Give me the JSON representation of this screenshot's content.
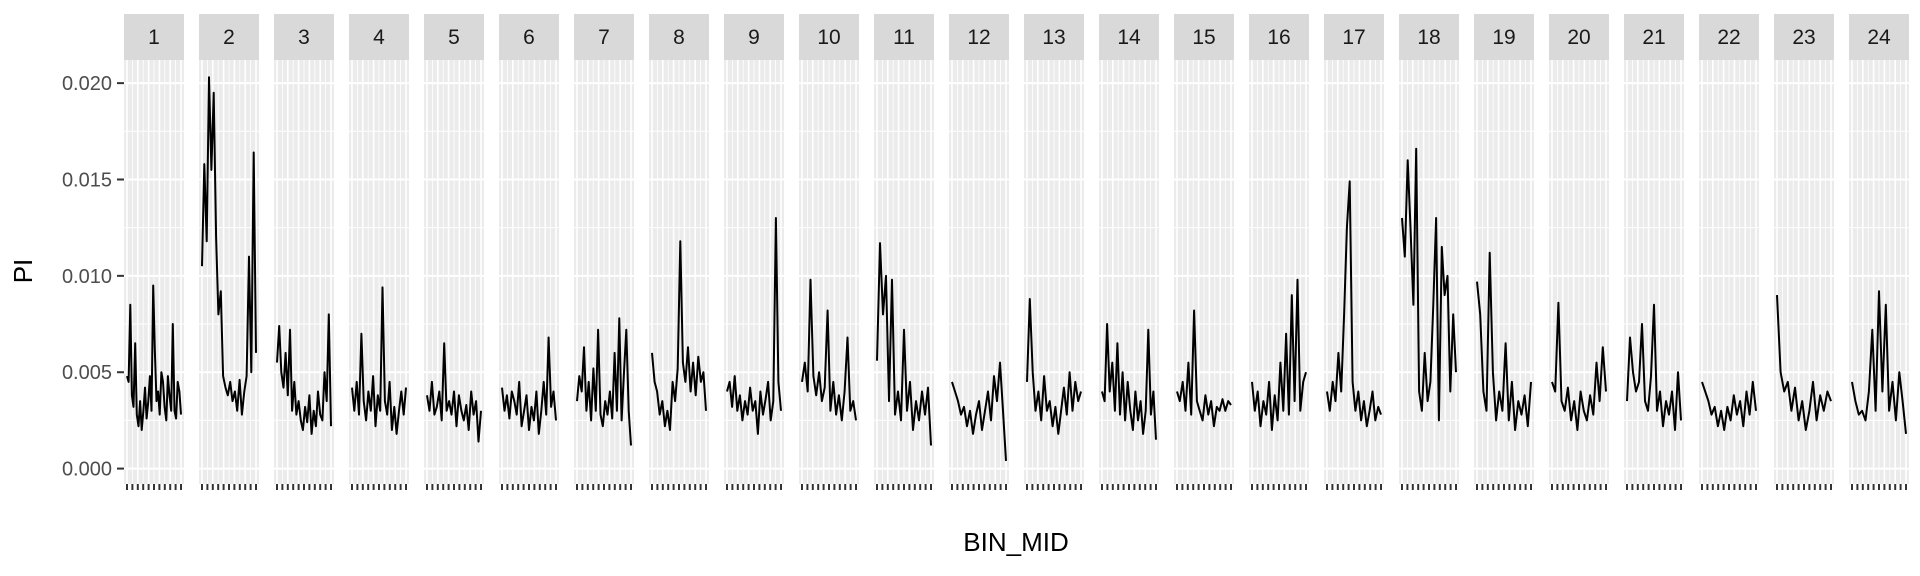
{
  "chart_data": {
    "type": "line",
    "xlabel": "BIN_MID",
    "ylabel": "PI",
    "ylim": [
      -0.0008,
      0.0212
    ],
    "yticks": [
      0.0,
      0.005,
      0.01,
      0.015,
      0.02
    ],
    "ytick_labels": [
      "0.000",
      "0.005",
      "0.010",
      "0.015",
      "0.020"
    ],
    "grid": true,
    "facet_strip_color": "#d9d9d9",
    "panel_background": "#ebebeb",
    "line_color": "#000000",
    "facets": [
      {
        "label": "1",
        "values": [
          0.0048,
          0.0045,
          0.0085,
          0.0038,
          0.0032,
          0.0065,
          0.0028,
          0.0022,
          0.0035,
          0.002,
          0.003,
          0.0042,
          0.0026,
          0.0035,
          0.0048,
          0.003,
          0.0095,
          0.0062,
          0.0035,
          0.004,
          0.0028,
          0.005,
          0.0045,
          0.0032,
          0.0025,
          0.0048,
          0.0038,
          0.003,
          0.0075,
          0.003,
          0.0026,
          0.0045,
          0.004,
          0.0028
        ]
      },
      {
        "label": "2",
        "values": [
          0.0105,
          0.0158,
          0.0118,
          0.0203,
          0.0155,
          0.0195,
          0.012,
          0.008,
          0.0092,
          0.0048,
          0.0042,
          0.0038,
          0.0045,
          0.0035,
          0.004,
          0.003,
          0.0046,
          0.0028,
          0.004,
          0.0048,
          0.011,
          0.005,
          0.0164,
          0.006
        ]
      },
      {
        "label": "3",
        "values": [
          0.0055,
          0.0074,
          0.005,
          0.0042,
          0.006,
          0.0038,
          0.0072,
          0.003,
          0.0045,
          0.0028,
          0.0035,
          0.0025,
          0.002,
          0.0032,
          0.0024,
          0.0038,
          0.0018,
          0.003,
          0.0022,
          0.004,
          0.0028,
          0.0025,
          0.005,
          0.0035,
          0.008,
          0.0022
        ]
      },
      {
        "label": "4",
        "values": [
          0.0042,
          0.003,
          0.0045,
          0.0028,
          0.007,
          0.0035,
          0.0025,
          0.004,
          0.003,
          0.0048,
          0.0022,
          0.0038,
          0.003,
          0.0094,
          0.0035,
          0.0028,
          0.0045,
          0.002,
          0.0032,
          0.0018,
          0.003,
          0.004,
          0.0028,
          0.0042
        ]
      },
      {
        "label": "5",
        "values": [
          0.0038,
          0.003,
          0.0045,
          0.0028,
          0.0032,
          0.004,
          0.0025,
          0.0065,
          0.003,
          0.0035,
          0.0028,
          0.004,
          0.0022,
          0.0038,
          0.003,
          0.0025,
          0.0033,
          0.002,
          0.004,
          0.0028,
          0.0035,
          0.0014,
          0.003
        ]
      },
      {
        "label": "6",
        "values": [
          0.0042,
          0.003,
          0.0038,
          0.0026,
          0.004,
          0.0035,
          0.0028,
          0.0045,
          0.0022,
          0.003,
          0.0038,
          0.002,
          0.0032,
          0.0025,
          0.004,
          0.0018,
          0.003,
          0.0045,
          0.0028,
          0.0068,
          0.0032,
          0.004,
          0.0025
        ]
      },
      {
        "label": "7",
        "values": [
          0.0035,
          0.0048,
          0.004,
          0.0063,
          0.003,
          0.0045,
          0.0025,
          0.0052,
          0.003,
          0.0072,
          0.0028,
          0.0022,
          0.0035,
          0.0028,
          0.004,
          0.0026,
          0.006,
          0.003,
          0.0078,
          0.0025,
          0.005,
          0.0072,
          0.003,
          0.0012
        ]
      },
      {
        "label": "8",
        "values": [
          0.006,
          0.0045,
          0.004,
          0.0028,
          0.0035,
          0.0022,
          0.003,
          0.002,
          0.0045,
          0.0035,
          0.0052,
          0.0118,
          0.0055,
          0.0045,
          0.0063,
          0.004,
          0.0055,
          0.0038,
          0.0058,
          0.0045,
          0.005,
          0.003
        ]
      },
      {
        "label": "9",
        "values": [
          0.004,
          0.0045,
          0.0032,
          0.0048,
          0.003,
          0.0038,
          0.0025,
          0.0035,
          0.0028,
          0.0042,
          0.003,
          0.0035,
          0.0018,
          0.004,
          0.0028,
          0.0036,
          0.0045,
          0.0025,
          0.0035,
          0.013,
          0.0045,
          0.003
        ]
      },
      {
        "label": "10",
        "values": [
          0.0045,
          0.0055,
          0.004,
          0.0098,
          0.0048,
          0.0038,
          0.005,
          0.0035,
          0.0042,
          0.0082,
          0.003,
          0.0045,
          0.0028,
          0.0038,
          0.0025,
          0.004,
          0.0068,
          0.003,
          0.0035,
          0.0025
        ]
      },
      {
        "label": "11",
        "values": [
          0.0056,
          0.0117,
          0.008,
          0.01,
          0.0035,
          0.0098,
          0.0028,
          0.004,
          0.0025,
          0.0072,
          0.003,
          0.0045,
          0.002,
          0.0035,
          0.0025,
          0.004,
          0.0028,
          0.0042,
          0.0012
        ]
      },
      {
        "label": "12",
        "values": [
          0.0045,
          0.004,
          0.0035,
          0.0028,
          0.0032,
          0.0022,
          0.003,
          0.0018,
          0.0028,
          0.0035,
          0.002,
          0.003,
          0.004,
          0.0025,
          0.0048,
          0.0035,
          0.0055,
          0.003,
          0.0004
        ]
      },
      {
        "label": "13",
        "values": [
          0.0045,
          0.0088,
          0.005,
          0.003,
          0.004,
          0.0025,
          0.0048,
          0.003,
          0.0035,
          0.0022,
          0.0032,
          0.0018,
          0.003,
          0.0042,
          0.0028,
          0.005,
          0.003,
          0.0045,
          0.0035,
          0.004
        ]
      },
      {
        "label": "14",
        "values": [
          0.004,
          0.0035,
          0.0075,
          0.004,
          0.0055,
          0.003,
          0.0065,
          0.0028,
          0.005,
          0.0025,
          0.0045,
          0.003,
          0.002,
          0.004,
          0.0025,
          0.0035,
          0.0018,
          0.003,
          0.0072,
          0.0028,
          0.004,
          0.0015
        ]
      },
      {
        "label": "15",
        "values": [
          0.004,
          0.0035,
          0.0045,
          0.003,
          0.0055,
          0.0028,
          0.0082,
          0.0035,
          0.003,
          0.0025,
          0.0038,
          0.0028,
          0.0035,
          0.0022,
          0.0032,
          0.003,
          0.0036,
          0.003,
          0.0035,
          0.0033
        ]
      },
      {
        "label": "16",
        "values": [
          0.0045,
          0.003,
          0.004,
          0.0022,
          0.0035,
          0.0028,
          0.0045,
          0.002,
          0.0038,
          0.0025,
          0.0055,
          0.003,
          0.007,
          0.0028,
          0.009,
          0.0035,
          0.0098,
          0.003,
          0.0045,
          0.005
        ]
      },
      {
        "label": "17",
        "values": [
          0.004,
          0.003,
          0.0045,
          0.0035,
          0.006,
          0.004,
          0.008,
          0.0125,
          0.0149,
          0.0045,
          0.003,
          0.004,
          0.0025,
          0.0035,
          0.0022,
          0.003,
          0.004,
          0.0025,
          0.0032,
          0.0028
        ]
      },
      {
        "label": "18",
        "values": [
          0.013,
          0.011,
          0.016,
          0.0125,
          0.0085,
          0.0166,
          0.004,
          0.003,
          0.006,
          0.0035,
          0.0045,
          0.0085,
          0.013,
          0.0025,
          0.0115,
          0.009,
          0.01,
          0.004,
          0.008,
          0.005
        ]
      },
      {
        "label": "19",
        "values": [
          0.0097,
          0.008,
          0.004,
          0.003,
          0.0112,
          0.005,
          0.0025,
          0.004,
          0.003,
          0.0065,
          0.0025,
          0.0045,
          0.002,
          0.0035,
          0.0028,
          0.0038,
          0.0022,
          0.0045
        ]
      },
      {
        "label": "20",
        "values": [
          0.0045,
          0.004,
          0.0086,
          0.0035,
          0.003,
          0.0042,
          0.0025,
          0.0035,
          0.002,
          0.004,
          0.003,
          0.0025,
          0.0038,
          0.0028,
          0.0055,
          0.0035,
          0.0063,
          0.004
        ]
      },
      {
        "label": "21",
        "values": [
          0.0035,
          0.0068,
          0.005,
          0.004,
          0.0045,
          0.0075,
          0.0035,
          0.003,
          0.0048,
          0.0085,
          0.003,
          0.004,
          0.0022,
          0.0035,
          0.0028,
          0.004,
          0.002,
          0.005,
          0.0025
        ]
      },
      {
        "label": "22",
        "values": [
          0.0045,
          0.004,
          0.0035,
          0.0028,
          0.0032,
          0.0022,
          0.003,
          0.002,
          0.0032,
          0.0025,
          0.0038,
          0.0028,
          0.0035,
          0.0022,
          0.004,
          0.0028,
          0.0045,
          0.003
        ]
      },
      {
        "label": "23",
        "values": [
          0.009,
          0.005,
          0.004,
          0.0045,
          0.003,
          0.0042,
          0.0025,
          0.0035,
          0.002,
          0.003,
          0.0045,
          0.0025,
          0.0038,
          0.003,
          0.004,
          0.0035
        ]
      },
      {
        "label": "24",
        "values": [
          0.0045,
          0.0035,
          0.0028,
          0.003,
          0.0025,
          0.004,
          0.0072,
          0.003,
          0.0092,
          0.004,
          0.0085,
          0.003,
          0.0045,
          0.0025,
          0.005,
          0.0035,
          0.0018
        ]
      }
    ]
  }
}
